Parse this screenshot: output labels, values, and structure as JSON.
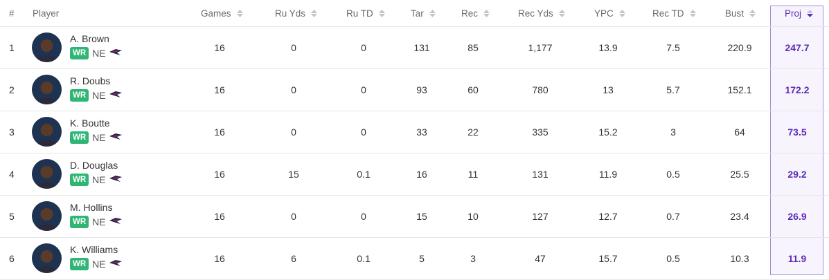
{
  "headers": {
    "rank": "#",
    "player": "Player",
    "games": "Games",
    "ru_yds": "Ru Yds",
    "ru_td": "Ru TD",
    "tar": "Tar",
    "rec": "Rec",
    "rec_yds": "Rec Yds",
    "ypc": "YPC",
    "rec_td": "Rec TD",
    "bust": "Bust",
    "proj": "Proj"
  },
  "colors": {
    "accent": "#5b2bb5",
    "badge": "#2fb574",
    "proj_bg": "#f7f4fd",
    "proj_border": "#a38bd6"
  },
  "rows": [
    {
      "rank": "1",
      "name": "A. Brown",
      "pos": "WR",
      "team": "NE",
      "games": "16",
      "ru_yds": "0",
      "ru_td": "0",
      "tar": "131",
      "rec": "85",
      "rec_yds": "1,177",
      "ypc": "13.9",
      "rec_td": "7.5",
      "bust": "220.9",
      "proj": "247.7"
    },
    {
      "rank": "2",
      "name": "R. Doubs",
      "pos": "WR",
      "team": "NE",
      "games": "16",
      "ru_yds": "0",
      "ru_td": "0",
      "tar": "93",
      "rec": "60",
      "rec_yds": "780",
      "ypc": "13",
      "rec_td": "5.7",
      "bust": "152.1",
      "proj": "172.2"
    },
    {
      "rank": "3",
      "name": "K. Boutte",
      "pos": "WR",
      "team": "NE",
      "games": "16",
      "ru_yds": "0",
      "ru_td": "0",
      "tar": "33",
      "rec": "22",
      "rec_yds": "335",
      "ypc": "15.2",
      "rec_td": "3",
      "bust": "64",
      "proj": "73.5"
    },
    {
      "rank": "4",
      "name": "D. Douglas",
      "pos": "WR",
      "team": "NE",
      "games": "16",
      "ru_yds": "15",
      "ru_td": "0.1",
      "tar": "16",
      "rec": "11",
      "rec_yds": "131",
      "ypc": "11.9",
      "rec_td": "0.5",
      "bust": "25.5",
      "proj": "29.2"
    },
    {
      "rank": "5",
      "name": "M. Hollins",
      "pos": "WR",
      "team": "NE",
      "games": "16",
      "ru_yds": "0",
      "ru_td": "0",
      "tar": "15",
      "rec": "10",
      "rec_yds": "127",
      "ypc": "12.7",
      "rec_td": "0.7",
      "bust": "23.4",
      "proj": "26.9"
    },
    {
      "rank": "6",
      "name": "K. Williams",
      "pos": "WR",
      "team": "NE",
      "games": "16",
      "ru_yds": "6",
      "ru_td": "0.1",
      "tar": "5",
      "rec": "3",
      "rec_yds": "47",
      "ypc": "15.7",
      "rec_td": "0.5",
      "bust": "10.3",
      "proj": "11.9"
    }
  ]
}
